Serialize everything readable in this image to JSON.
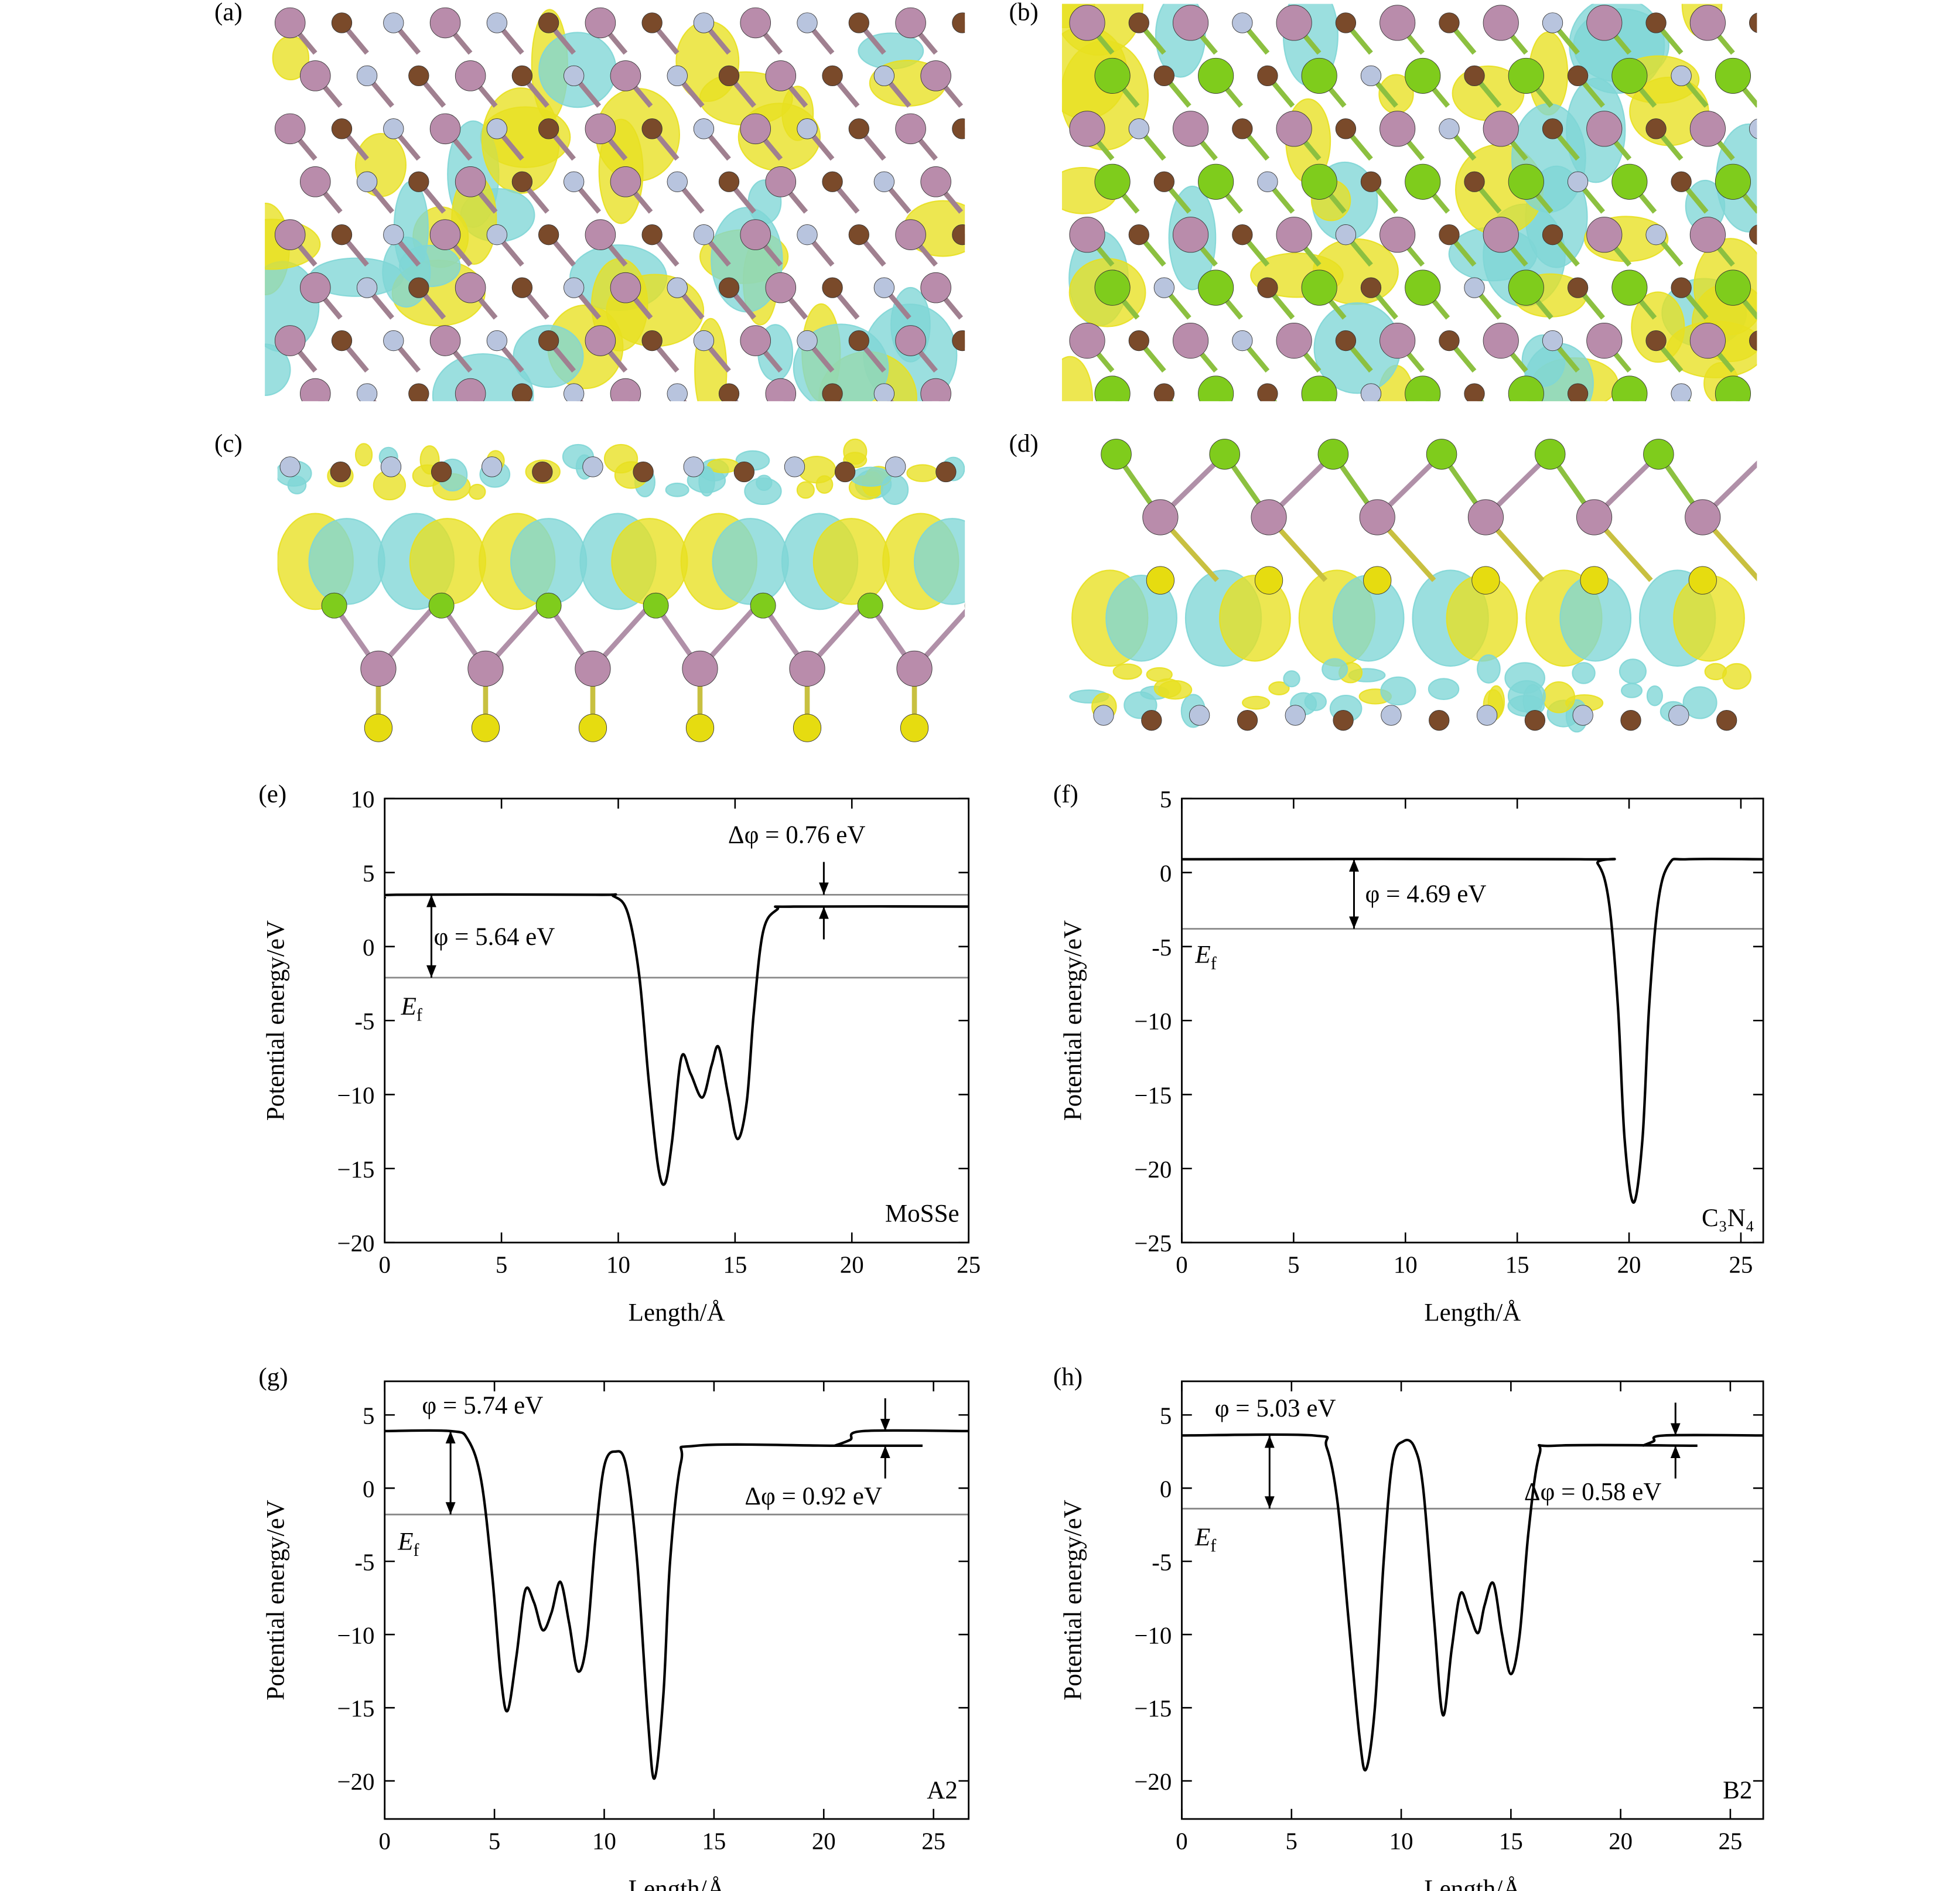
{
  "images": [
    {
      "label": "(a)"
    },
    {
      "label": "(b)"
    },
    {
      "label": "(c)"
    },
    {
      "label": "(d)"
    }
  ],
  "chart_data": [
    {
      "type": "line",
      "panel": "(e)",
      "xlabel": "Length/Å",
      "ylabel": "Potential energy/eV",
      "xlim": [
        0,
        25
      ],
      "xticks": [
        0,
        5,
        10,
        15,
        20,
        25
      ],
      "ylim": [
        -20,
        10
      ],
      "yticks": [
        {
          "value": -20,
          "label": "−20"
        },
        {
          "value": -15,
          "label": "−15"
        },
        {
          "value": -10,
          "label": "−10"
        },
        {
          "value": -5,
          "label": "-5"
        },
        0,
        5,
        10
      ],
      "series": [
        {
          "color": "#000000",
          "x": [
            0,
            0.5,
            9,
            9.8,
            10.4,
            10.9,
            11.3,
            11.7,
            12,
            12.3,
            12.7,
            13.1,
            13.6,
            14,
            14.3,
            14.7,
            15.1,
            15.5,
            15.8,
            16.2,
            16.8,
            17.5,
            25
          ],
          "values": [
            3.3,
            3.5,
            3.5,
            3.4,
            2.3,
            -2,
            -9,
            -14.8,
            -16,
            -13.2,
            -7.5,
            -8.6,
            -10.2,
            -8,
            -6.8,
            -10,
            -13,
            -10.5,
            -4.5,
            1,
            2.5,
            2.7,
            2.7
          ]
        }
      ],
      "hlines": {
        "color": "#888888",
        "values": [
          3.5,
          -2.1
        ]
      },
      "annotations": [
        "φ = 5.64 eV",
        "Δφ = 0.76 eV",
        "MoSSe"
      ],
      "ef_label": {
        "main": "E",
        "sub": "f"
      }
    },
    {
      "type": "line",
      "panel": "(f)",
      "xlabel": "Length/Å",
      "ylabel": "Potential energy/eV",
      "xlim": [
        0,
        26
      ],
      "xticks": [
        0,
        5,
        10,
        15,
        20,
        25
      ],
      "ylim": [
        -25,
        5
      ],
      "yticks": [
        {
          "value": -25,
          "label": "−25"
        },
        {
          "value": -20,
          "label": "−20"
        },
        {
          "value": -15,
          "label": "−15"
        },
        {
          "value": -10,
          "label": "−10"
        },
        {
          "value": -5,
          "label": "-5"
        },
        0,
        5
      ],
      "series": [
        {
          "color": "#000000",
          "x": [
            0,
            17.8,
            18.6,
            19.1,
            19.5,
            19.8,
            20.2,
            20.6,
            20.9,
            21.3,
            21.8,
            22.6,
            26
          ],
          "values": [
            0.9,
            0.9,
            0.6,
            -2,
            -9,
            -18,
            -22.3,
            -18,
            -9,
            -2,
            0.6,
            0.9,
            0.9
          ]
        }
      ],
      "hlines": {
        "color": "#888888",
        "values": [
          -3.8
        ]
      },
      "annotations": [
        "φ = 4.69 eV",
        "C₃N₄"
      ],
      "ef_label": {
        "main": "E",
        "sub": "f"
      }
    },
    {
      "type": "line",
      "panel": "(g)",
      "xlabel": "Length/Å",
      "ylabel": "Potential energy/eV",
      "xlim": [
        0,
        26.6
      ],
      "xticks": [
        0,
        5,
        10,
        15,
        20,
        25
      ],
      "ylim": [
        -22.6,
        7.3
      ],
      "yticks": [
        {
          "value": -20,
          "label": "−20"
        },
        {
          "value": -15,
          "label": "−15"
        },
        {
          "value": -10,
          "label": "−10"
        },
        {
          "value": -5,
          "label": "-5"
        },
        0,
        5
      ],
      "series": [
        {
          "color": "#000000",
          "x": [
            0,
            3,
            3.8,
            4.4,
            4.9,
            5.3,
            5.6,
            6,
            6.4,
            6.8,
            7.2,
            7.6,
            8,
            8.4,
            8.8,
            9.2,
            9.6,
            10,
            10.5,
            11,
            11.5,
            12,
            12.3,
            12.7,
            13,
            13.5,
            14.2,
            20.5,
            24.5
          ],
          "values": [
            3.9,
            3.9,
            3.3,
            0.5,
            -6,
            -13,
            -15.2,
            -11.5,
            -7,
            -7.8,
            -9.7,
            -8.5,
            -6.4,
            -9.2,
            -12.5,
            -10.5,
            -3.5,
            1.5,
            2.5,
            1.5,
            -5,
            -16,
            -19.8,
            -14,
            -5,
            1.8,
            2.9,
            2.9,
            2.9
          ]
        },
        {
          "color": "#000000",
          "x": [
            20.5,
            21.2,
            21.8,
            26.6
          ],
          "values": [
            2.9,
            3.3,
            3.9,
            3.9
          ]
        }
      ],
      "hlines": {
        "color": "#888888",
        "values": [
          -1.8
        ]
      },
      "annotations": [
        "φ = 5.74 eV",
        "Δφ = 0.92 eV",
        "A2"
      ],
      "ef_label": {
        "main": "E",
        "sub": "f"
      }
    },
    {
      "type": "line",
      "panel": "(h)",
      "xlabel": "Length/Å",
      "ylabel": "Potential energy/eV",
      "xlim": [
        0,
        26.5
      ],
      "xticks": [
        0,
        5,
        10,
        15,
        20,
        25
      ],
      "ylim": [
        -22.6,
        7.3
      ],
      "yticks": [
        {
          "value": -20,
          "label": "−20"
        },
        {
          "value": -15,
          "label": "−15"
        },
        {
          "value": -10,
          "label": "−10"
        },
        {
          "value": -5,
          "label": "-5"
        },
        0,
        5
      ],
      "series": [
        {
          "color": "#000000",
          "x": [
            0,
            6,
            6.6,
            7.1,
            7.6,
            8.1,
            8.4,
            8.8,
            9.2,
            9.6,
            10.1,
            10.6,
            11,
            11.5,
            11.9,
            12.3,
            12.7,
            13.1,
            13.5,
            13.8,
            14.2,
            14.6,
            15,
            15.4,
            15.8,
            16.3,
            17,
            23.5
          ],
          "values": [
            3.6,
            3.6,
            2.8,
            -1,
            -9,
            -17,
            -19.2,
            -15,
            -5,
            1.8,
            3.2,
            2.8,
            0,
            -9,
            -15.5,
            -11,
            -7.2,
            -8.5,
            -9.9,
            -8,
            -6.5,
            -10,
            -12.7,
            -10,
            -3,
            2.3,
            2.9,
            2.9
          ]
        },
        {
          "color": "#000000",
          "x": [
            21,
            21.5,
            22,
            26.5
          ],
          "values": [
            2.9,
            3.2,
            3.6,
            3.6
          ]
        }
      ],
      "hlines": {
        "color": "#888888",
        "values": [
          -1.4
        ]
      },
      "annotations": [
        "φ = 5.03 eV",
        "Δφ = 0.58 eV",
        "B2"
      ],
      "ef_label": {
        "main": "E",
        "sub": "f"
      }
    }
  ]
}
